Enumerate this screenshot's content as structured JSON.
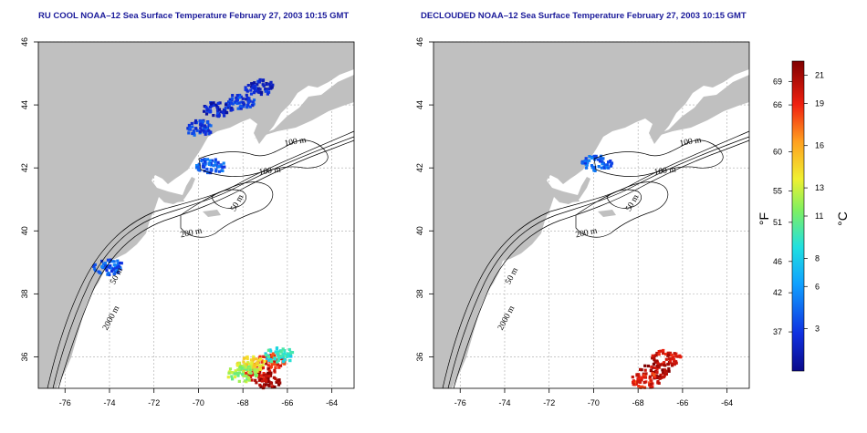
{
  "panels": [
    {
      "id": "left",
      "title": "RU COOL NOAA–12 Sea Surface Temperature February 27, 2003 10:15 GMT",
      "contour_labels": [
        "100 m",
        "100 m",
        "50 m",
        "200 m",
        "50 m",
        "2000 m"
      ],
      "sst_clusters": [
        {
          "lon": -68.2,
          "lat": 44.15,
          "temp_c": 3
        },
        {
          "lon": -67.3,
          "lat": 44.6,
          "temp_c": 2
        },
        {
          "lon": -69.2,
          "lat": 43.9,
          "temp_c": 2
        },
        {
          "lon": -70.0,
          "lat": 43.3,
          "temp_c": 3
        },
        {
          "lon": -69.5,
          "lat": 42.1,
          "temp_c": 4
        },
        {
          "lon": -74.1,
          "lat": 38.9,
          "temp_c": 4
        },
        {
          "lon": -66.8,
          "lat": 35.9,
          "temp_c": 19
        },
        {
          "lon": -67.3,
          "lat": 35.6,
          "temp_c": 20
        },
        {
          "lon": -67.7,
          "lat": 35.8,
          "temp_c": 14
        },
        {
          "lon": -66.4,
          "lat": 36.1,
          "temp_c": 9
        },
        {
          "lon": -67.0,
          "lat": 35.3,
          "temp_c": 21
        },
        {
          "lon": -68.1,
          "lat": 35.5,
          "temp_c": 12
        }
      ]
    },
    {
      "id": "right",
      "title": "DECLOUDED NOAA–12 Sea Surface Temperature February 27, 2003 10:15 GMT",
      "contour_labels": [
        "100 m",
        "100 m",
        "50 m",
        "200 m",
        "50 m",
        "2000 m"
      ],
      "sst_clusters": [
        {
          "lon": -69.9,
          "lat": 42.2,
          "temp_c": 4
        },
        {
          "lon": -66.8,
          "lat": 36.0,
          "temp_c": 20
        },
        {
          "lon": -67.3,
          "lat": 35.6,
          "temp_c": 21
        },
        {
          "lon": -67.7,
          "lat": 35.3,
          "temp_c": 19
        }
      ]
    }
  ],
  "x_ticks": [
    "-76",
    "-74",
    "-72",
    "-70",
    "-68",
    "-66",
    "-64"
  ],
  "y_ticks": [
    "36",
    "38",
    "40",
    "42",
    "44",
    "46"
  ],
  "lon_range": [
    -77.2,
    -63.0
  ],
  "lat_range": [
    35.0,
    46.0
  ],
  "colorbar": {
    "f_label": "°F",
    "c_label": "°C",
    "f_ticks": [
      "37",
      "42",
      "46",
      "51",
      "55",
      "60",
      "66",
      "69"
    ],
    "c_ticks": [
      "3",
      "6",
      "8",
      "11",
      "13",
      "16",
      "19",
      "21"
    ],
    "c_min": 0,
    "c_max": 22
  },
  "colors": {
    "land": "#c0c0c0",
    "grid": "#a0a0a0",
    "cold": "#1c1ca8"
  }
}
